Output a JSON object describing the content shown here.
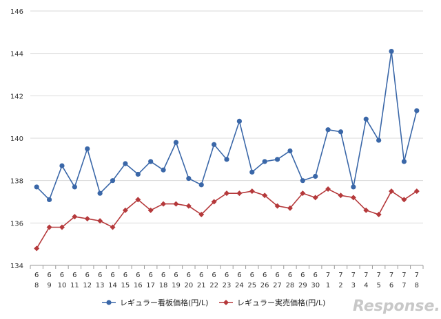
{
  "chart_data": {
    "type": "line",
    "categories": [
      [
        "6",
        "8"
      ],
      [
        "6",
        "9"
      ],
      [
        "6",
        "10"
      ],
      [
        "6",
        "11"
      ],
      [
        "6",
        "12"
      ],
      [
        "6",
        "13"
      ],
      [
        "6",
        "14"
      ],
      [
        "6",
        "15"
      ],
      [
        "6",
        "16"
      ],
      [
        "6",
        "17"
      ],
      [
        "6",
        "18"
      ],
      [
        "6",
        "19"
      ],
      [
        "6",
        "20"
      ],
      [
        "6",
        "21"
      ],
      [
        "6",
        "22"
      ],
      [
        "6",
        "23"
      ],
      [
        "6",
        "24"
      ],
      [
        "6",
        "25"
      ],
      [
        "6",
        "26"
      ],
      [
        "6",
        "27"
      ],
      [
        "6",
        "28"
      ],
      [
        "6",
        "29"
      ],
      [
        "6",
        "30"
      ],
      [
        "7",
        "1"
      ],
      [
        "7",
        "2"
      ],
      [
        "7",
        "3"
      ],
      [
        "7",
        "4"
      ],
      [
        "7",
        "5"
      ],
      [
        "7",
        "6"
      ],
      [
        "7",
        "7"
      ],
      [
        "7",
        "8"
      ]
    ],
    "series": [
      {
        "name": "レギュラー看板価格(円/L)",
        "color": "#3a67a8",
        "marker": "circle",
        "values": [
          137.7,
          137.1,
          138.7,
          137.7,
          139.5,
          137.4,
          138.0,
          138.8,
          138.3,
          138.9,
          138.5,
          139.8,
          138.1,
          137.8,
          139.7,
          139.0,
          140.8,
          138.4,
          138.9,
          139.0,
          139.4,
          138.0,
          138.2,
          140.4,
          140.3,
          137.7,
          140.9,
          139.9,
          144.1,
          138.9,
          141.3
        ]
      },
      {
        "name": "レギュラー実売価格(円/L)",
        "color": "#b5393b",
        "marker": "diamond",
        "values": [
          134.8,
          135.8,
          135.8,
          136.3,
          136.2,
          136.1,
          135.8,
          136.6,
          137.1,
          136.6,
          136.9,
          136.9,
          136.8,
          136.4,
          137.0,
          137.4,
          137.4,
          137.5,
          137.3,
          136.8,
          136.7,
          137.4,
          137.2,
          137.6,
          137.3,
          137.2,
          136.6,
          136.4,
          137.5,
          137.1,
          137.5
        ]
      }
    ],
    "ylim": [
      134,
      146
    ],
    "yticks": [
      134,
      136,
      138,
      140,
      142,
      144,
      146
    ],
    "grid": true,
    "legend_position": "bottom",
    "watermark": "Response."
  }
}
